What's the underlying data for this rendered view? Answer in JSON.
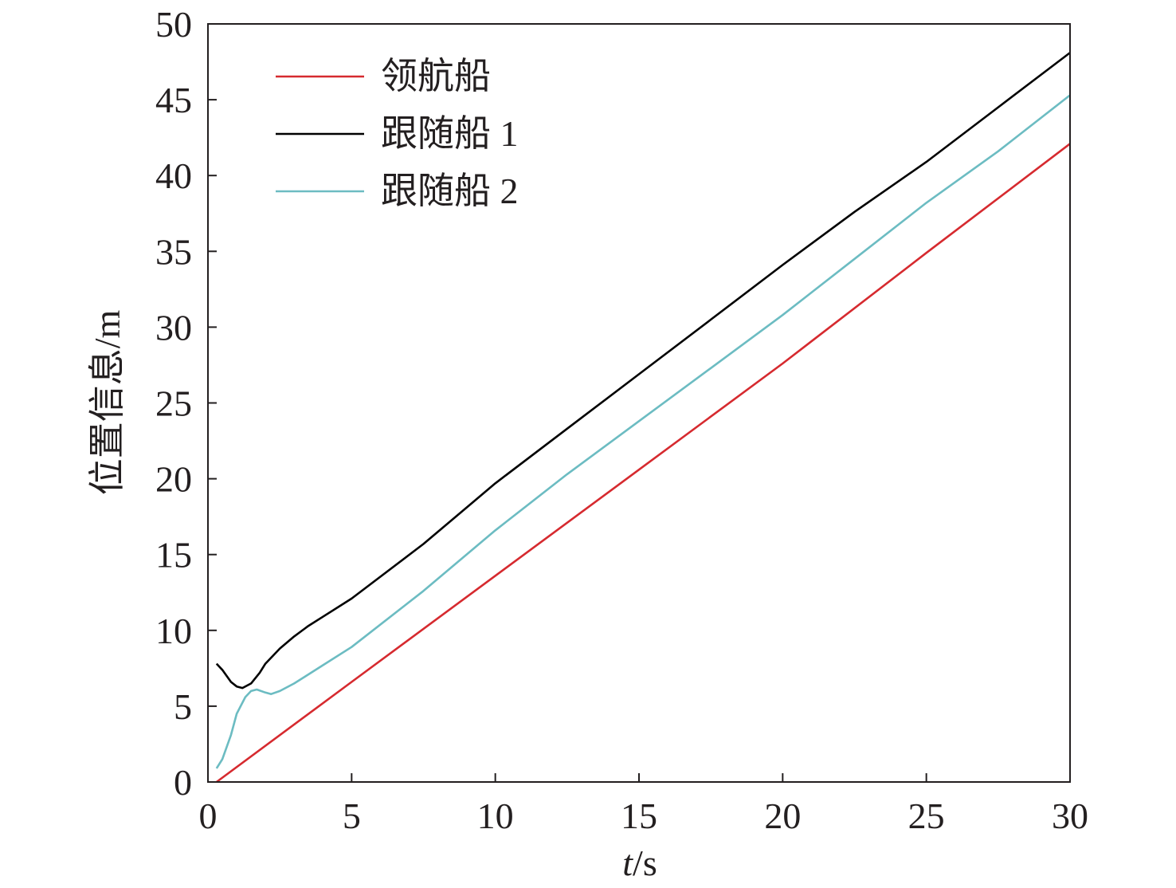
{
  "chart_data": {
    "type": "line",
    "title": "",
    "xlabel": {
      "italic": "t",
      "rest": "/s"
    },
    "ylabel": "位置信息/m",
    "xlim": [
      0,
      30
    ],
    "ylim": [
      0,
      50
    ],
    "xticks": [
      0,
      5,
      10,
      15,
      20,
      25,
      30
    ],
    "yticks": [
      0,
      5,
      10,
      15,
      20,
      25,
      30,
      35,
      40,
      45,
      50
    ],
    "grid": false,
    "legend_position": "top-left",
    "series": [
      {
        "name": "领航船",
        "color": "#d62a2f",
        "x": [
          0.3,
          5,
          10,
          15,
          20,
          25,
          30
        ],
        "y": [
          0.0,
          6.6,
          13.6,
          20.6,
          27.6,
          34.9,
          42.1
        ]
      },
      {
        "name": "跟随船 1",
        "color": "#000000",
        "x": [
          0.3,
          0.5,
          0.8,
          1.0,
          1.2,
          1.5,
          1.8,
          2.0,
          2.5,
          3.0,
          3.5,
          4.0,
          5,
          7.5,
          10,
          12.5,
          15,
          17.5,
          20,
          22.5,
          25,
          27.5,
          30
        ],
        "y": [
          7.8,
          7.4,
          6.6,
          6.3,
          6.2,
          6.5,
          7.2,
          7.8,
          8.8,
          9.6,
          10.3,
          10.9,
          12.1,
          15.7,
          19.7,
          23.3,
          26.9,
          30.5,
          34.1,
          37.6,
          40.9,
          44.5,
          48.1
        ]
      },
      {
        "name": "跟随船 2",
        "color": "#6cbcc2",
        "x": [
          0.3,
          0.5,
          0.8,
          1.0,
          1.3,
          1.5,
          1.7,
          2.0,
          2.2,
          2.5,
          3.0,
          3.5,
          4.0,
          5,
          7.5,
          10,
          12.5,
          15,
          17.5,
          20,
          22.5,
          25,
          27.5,
          30
        ],
        "y": [
          0.9,
          1.5,
          3.1,
          4.5,
          5.6,
          6.0,
          6.1,
          5.9,
          5.8,
          6.0,
          6.5,
          7.1,
          7.7,
          8.9,
          12.6,
          16.6,
          20.3,
          23.8,
          27.3,
          30.8,
          34.5,
          38.2,
          41.6,
          45.3
        ]
      }
    ]
  }
}
